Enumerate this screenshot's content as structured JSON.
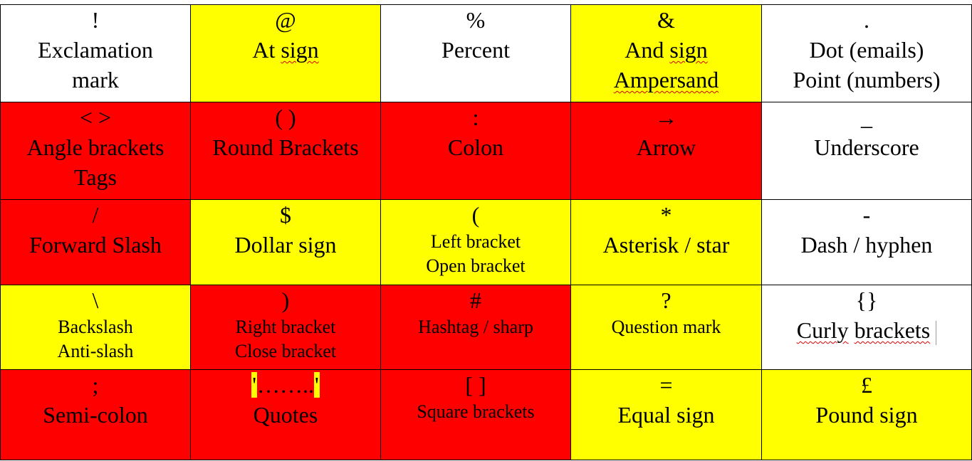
{
  "cells": [
    [
      {
        "symbol": "!",
        "lines": [
          "Exclamation",
          "mark"
        ],
        "bg": "#ffffff"
      },
      {
        "symbol": "@",
        "lines": [
          "At sign"
        ],
        "bg": "#ffff00"
      },
      {
        "symbol": "%",
        "lines": [
          "Percent"
        ],
        "bg": "#ffffff"
      },
      {
        "symbol": "&",
        "lines": [
          "And sign",
          "Ampersand"
        ],
        "bg": "#ffff00"
      },
      {
        "symbol": ".",
        "lines": [
          "Dot (emails)",
          "Point (numbers)"
        ],
        "bg": "#ffffff"
      }
    ],
    [
      {
        "symbol": "< >",
        "lines": [
          "Angle brackets",
          "Tags"
        ],
        "bg": "#ff0000"
      },
      {
        "symbol": "( )",
        "lines": [
          "Round Brackets"
        ],
        "bg": "#ff0000"
      },
      {
        "symbol": ":",
        "lines": [
          "Colon"
        ],
        "bg": "#ff0000"
      },
      {
        "symbol": "→",
        "lines": [
          "Arrow"
        ],
        "bg": "#ff0000"
      },
      {
        "symbol": "_",
        "lines": [
          "Underscore"
        ],
        "bg": "#ffffff"
      }
    ],
    [
      {
        "symbol": "/",
        "lines": [
          "Forward Slash"
        ],
        "bg": "#ff0000"
      },
      {
        "symbol": "$",
        "lines": [
          "Dollar sign"
        ],
        "bg": "#ffff00"
      },
      {
        "symbol": "(",
        "lines": [
          "Left bracket",
          "Open bracket"
        ],
        "bg": "#ffff00"
      },
      {
        "symbol": "*",
        "lines": [
          "Asterisk / star"
        ],
        "bg": "#ffff00"
      },
      {
        "symbol": "-",
        "lines": [
          "Dash / hyphen"
        ],
        "bg": "#ffffff"
      }
    ],
    [
      {
        "symbol": "\\",
        "lines": [
          "Backslash",
          "Anti-slash"
        ],
        "bg": "#ffff00"
      },
      {
        "symbol": ")",
        "lines": [
          "Right bracket",
          "Close bracket"
        ],
        "bg": "#ff0000"
      },
      {
        "symbol": "#",
        "lines": [
          "Hashtag / sharp"
        ],
        "bg": "#ff0000"
      },
      {
        "symbol": "?",
        "lines": [
          "Question mark"
        ],
        "bg": "#ffff00"
      },
      {
        "symbol": "{}",
        "lines": [
          "Curly brackets"
        ],
        "bg": "#ffffff"
      }
    ],
    [
      {
        "symbol": ";",
        "lines": [
          "Semi-colon"
        ],
        "bg": "#ff0000"
      },
      {
        "symbol": "'……..'",
        "lines": [
          "Quotes"
        ],
        "bg": "#ff0000"
      },
      {
        "symbol": "[ ]",
        "lines": [
          "Square brackets"
        ],
        "bg": "#ff0000"
      },
      {
        "symbol": "=",
        "lines": [
          "Equal sign"
        ],
        "bg": "#ffff00"
      },
      {
        "symbol": "£",
        "lines": [
          "Pound sign"
        ],
        "bg": "#ffff00"
      }
    ]
  ],
  "quotes_cell": {
    "open_mark": "'",
    "dots": "……..",
    "close_mark": "'"
  },
  "spellcheck_words": {
    "at_sign_sign": "sign",
    "and_sign_sign": "sign",
    "ampersand": "Ampersand",
    "curly": "Curly",
    "brackets": "brackets"
  }
}
